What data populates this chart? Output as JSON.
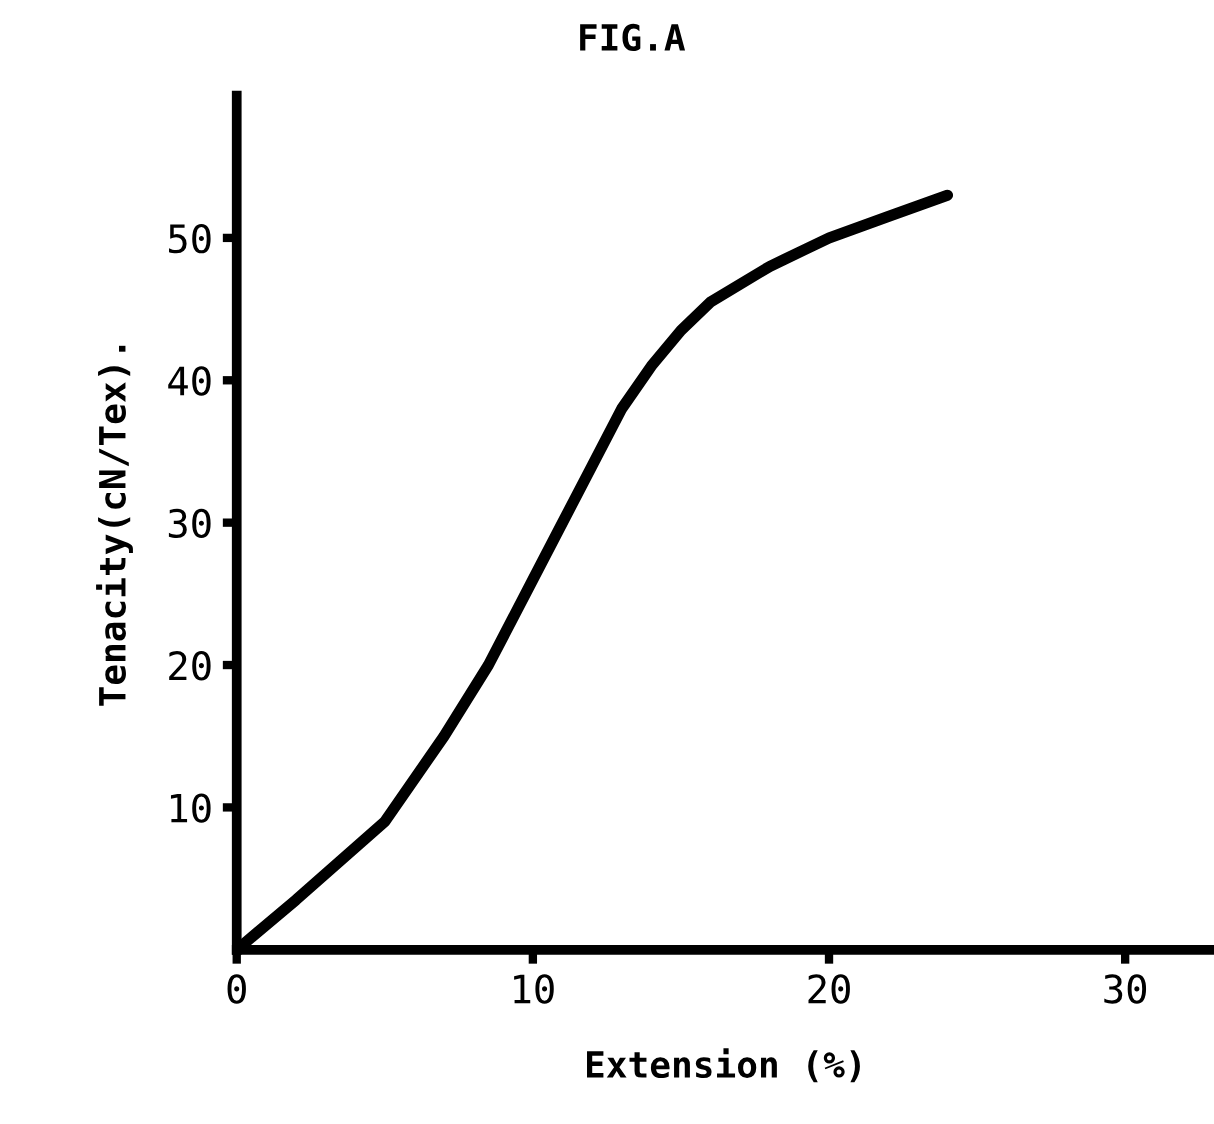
{
  "chart_data": {
    "type": "line",
    "title": "FIG.A",
    "xlabel": "Extension (%)",
    "ylabel": "Tenacity(cN/Tex).",
    "x": [
      0,
      2,
      5,
      7,
      8.5,
      10,
      11,
      12,
      13,
      14,
      15,
      16,
      18,
      20,
      22,
      24
    ],
    "series": [
      {
        "color": "#000000",
        "values": [
          0,
          3.5,
          9,
          15,
          20,
          26,
          30,
          34,
          38,
          41,
          43.5,
          45.5,
          48,
          50,
          51.5,
          53
        ]
      }
    ],
    "xlim": [
      0,
      33
    ],
    "ylim": [
      0,
      60
    ],
    "xticks": [
      0,
      10,
      20,
      30
    ],
    "yticks": [
      10,
      20,
      30,
      40,
      50
    ],
    "grid": false,
    "marker": "none",
    "line_style": "solid"
  }
}
